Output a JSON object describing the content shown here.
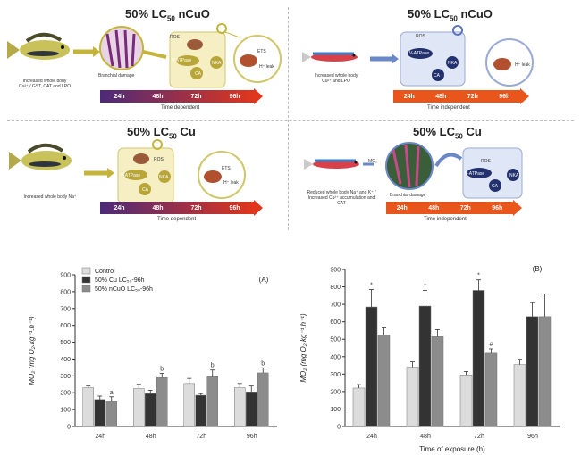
{
  "scheme": {
    "panel_tl": {
      "title_prefix": "50% LC",
      "title_sub": "50",
      "title_suffix": " nCuO",
      "left_note": "Increased whole body Cu²⁺ / GST, CAT and LPO",
      "gill_label": "Branchial damage",
      "cell_labels": [
        "ROS",
        "V-ATPase",
        "CA",
        "NKA"
      ],
      "bubble_labels": [
        "ETS",
        "H⁺ leak"
      ],
      "times": [
        "24h",
        "48h",
        "72h",
        "96h"
      ],
      "time_caption": "Time dependent"
    },
    "panel_tr": {
      "title_prefix": "50% LC",
      "title_sub": "50",
      "title_suffix": " nCuO",
      "left_note": "Increased whole body Cu²⁺ and LPO",
      "cell_labels": [
        "ROS",
        "V-ATPase",
        "NKA",
        "CA"
      ],
      "bubble_labels": [
        "H⁺ leak"
      ],
      "times": [
        "24h",
        "48h",
        "72h",
        "96h"
      ],
      "time_caption": "Time independent"
    },
    "panel_bl": {
      "title_prefix": "50% LC",
      "title_sub": "50",
      "title_suffix": " Cu",
      "left_note": "Increased whole body Na⁺",
      "cell_labels": [
        "ROS",
        "V-ATPase",
        "NKA",
        "CA"
      ],
      "bubble_labels": [
        "ETS",
        "H⁺ leak"
      ],
      "times": [
        "24h",
        "48h",
        "72h",
        "96h"
      ],
      "time_caption": "Time dependent"
    },
    "panel_br": {
      "title_prefix": "50% LC",
      "title_sub": "50",
      "title_suffix": " Cu",
      "left_note": "Reduced whole body Na⁺ and K⁺ / Increased Cu²⁺ accumulation and CAT",
      "mo2_label": "MO₂",
      "gill_label": "Branchial damage",
      "cell_labels": [
        "ROS",
        "V-ATPase",
        "NKA",
        "CA"
      ],
      "times": [
        "24h",
        "48h",
        "72h",
        "96h"
      ],
      "time_caption": "Time independent"
    }
  },
  "colors": {
    "control": "#dcdcdc",
    "cu": "#333333",
    "ncuo": "#8c8c8c",
    "time_dep_start": "#4b2a7a",
    "time_dep_end": "#e0361c",
    "time_ind": "#e8561c",
    "cell_yellow": "#f6efc4",
    "cell_blue": "#dfe6f6"
  },
  "chart_data": [
    {
      "type": "bar",
      "panel_label": "(A)",
      "categories": [
        "24h",
        "48h",
        "72h",
        "96h"
      ],
      "ylabel": "MO₂ (mg O₂.kg⁻¹.h⁻¹)",
      "xlabel": "",
      "ylim": [
        0,
        900
      ],
      "yticks": [
        0,
        100,
        200,
        300,
        400,
        500,
        600,
        700,
        800,
        900
      ],
      "legend_position": "top-left",
      "legend": [
        "Control",
        "50% Cu LC₅₀-96h",
        "50% nCuO LC₅₀-96h"
      ],
      "series": [
        {
          "name": "Control",
          "values": [
            230,
            225,
            255,
            230
          ],
          "errors": [
            10,
            25,
            30,
            25
          ],
          "labels": [
            "",
            "",
            "",
            ""
          ]
        },
        {
          "name": "50% Cu LC₅₀-96h",
          "values": [
            160,
            195,
            185,
            205
          ],
          "errors": [
            20,
            20,
            10,
            35
          ],
          "labels": [
            "",
            "",
            "",
            ""
          ]
        },
        {
          "name": "50% nCuO LC₅₀-96h",
          "values": [
            148,
            290,
            295,
            318
          ],
          "errors": [
            28,
            25,
            40,
            30
          ],
          "labels": [
            "a",
            "b",
            "b",
            "b"
          ]
        }
      ]
    },
    {
      "type": "bar",
      "panel_label": "(B)",
      "categories": [
        "24h",
        "48h",
        "72h",
        "96h"
      ],
      "ylabel": "MO₂ (mg O₂.kg⁻¹.h⁻¹)",
      "xlabel": "Time of exposure (h)",
      "ylim": [
        0,
        900
      ],
      "yticks": [
        0,
        100,
        200,
        300,
        400,
        500,
        600,
        700,
        800,
        900
      ],
      "series": [
        {
          "name": "Control",
          "values": [
            220,
            340,
            295,
            355
          ],
          "errors": [
            20,
            30,
            20,
            30
          ],
          "labels": [
            "",
            "",
            "",
            ""
          ]
        },
        {
          "name": "50% Cu LC₅₀-96h",
          "values": [
            685,
            690,
            780,
            630
          ],
          "errors": [
            100,
            90,
            60,
            80
          ],
          "labels": [
            "*",
            "*",
            "*",
            ""
          ]
        },
        {
          "name": "50% nCuO LC₅₀-96h",
          "values": [
            525,
            515,
            420,
            630
          ],
          "errors": [
            40,
            40,
            25,
            130
          ],
          "labels": [
            "",
            "",
            "#",
            ""
          ]
        }
      ]
    }
  ]
}
